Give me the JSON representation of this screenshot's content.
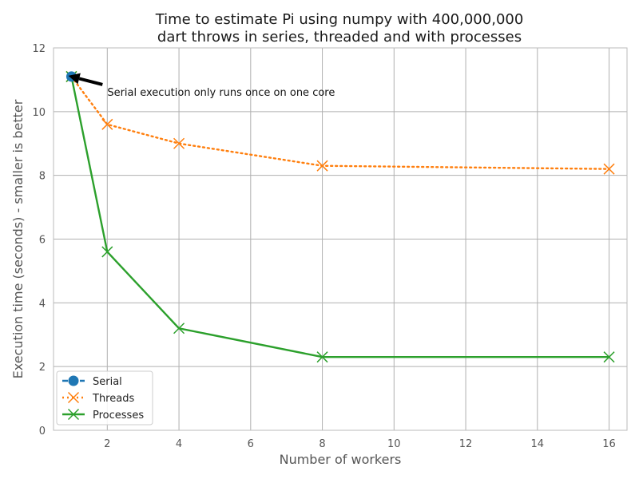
{
  "chart_data": {
    "type": "line",
    "title_lines": [
      "Time to estimate Pi using numpy with 400,000,000",
      "dart throws in series, threaded and with processes"
    ],
    "xlabel": "Number of workers",
    "ylabel": "Execution time (seconds) - smaller is better",
    "xlim": [
      0.5,
      16.5
    ],
    "ylim": [
      0,
      12
    ],
    "xticks": [
      2,
      4,
      6,
      8,
      10,
      12,
      14,
      16
    ],
    "yticks": [
      0,
      2,
      4,
      6,
      8,
      10,
      12
    ],
    "grid": true,
    "legend_position": "lower-left",
    "series": [
      {
        "name": "Serial",
        "color": "#1f77b4",
        "line_style": "dashed",
        "marker": "circle",
        "x": [
          1
        ],
        "y": [
          11.1
        ]
      },
      {
        "name": "Threads",
        "color": "#ff7f0e",
        "line_style": "dotted",
        "marker": "x",
        "x": [
          1,
          2,
          4,
          8,
          16
        ],
        "y": [
          11.1,
          9.6,
          9.0,
          8.3,
          8.2
        ]
      },
      {
        "name": "Processes",
        "color": "#2ca02c",
        "line_style": "solid",
        "marker": "x",
        "x": [
          1,
          2,
          4,
          8,
          16
        ],
        "y": [
          11.1,
          5.6,
          3.2,
          2.3,
          2.3
        ]
      }
    ],
    "annotations": [
      {
        "text": "Serial execution only runs once on one core",
        "target_x": 1,
        "target_y": 11.1,
        "text_x": 2,
        "text_y": 10.6
      }
    ]
  }
}
